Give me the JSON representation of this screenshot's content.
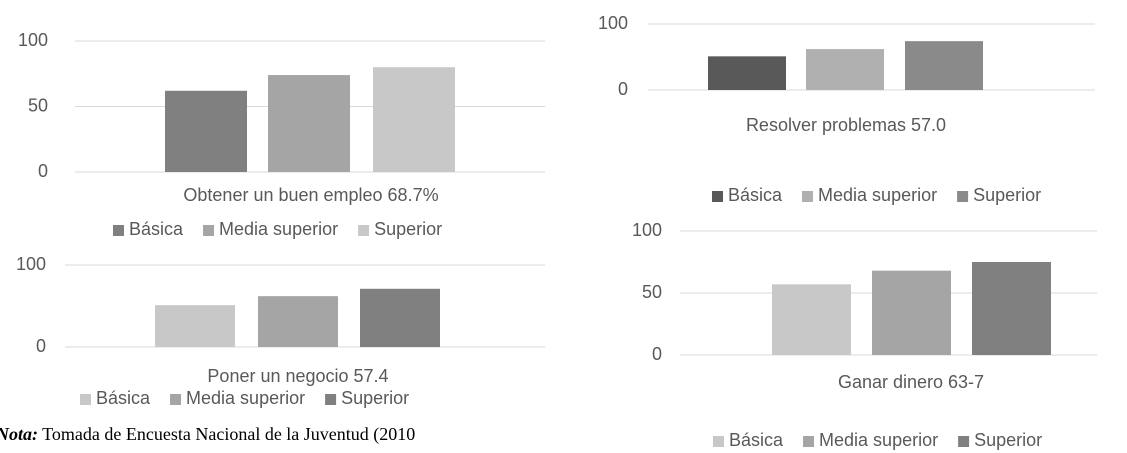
{
  "chart_data": [
    {
      "type": "bar",
      "title": "Obtener un buen empleo 68.7%",
      "series": [
        {
          "name": "Básica",
          "color": "#808080",
          "values": [
            62
          ]
        },
        {
          "name": "Media superior",
          "color": "#a5a5a5",
          "values": [
            74
          ]
        },
        {
          "name": "Superior",
          "color": "#c8c8c8",
          "values": [
            80
          ]
        }
      ],
      "ylim": [
        0,
        100
      ],
      "yticks": [
        0,
        50,
        100
      ],
      "grid": true
    },
    {
      "type": "bar",
      "title": "Poner un negocio 57.4",
      "series": [
        {
          "name": "Básica",
          "color": "#c8c8c8",
          "values": [
            51
          ]
        },
        {
          "name": "Media superior",
          "color": "#a5a5a5",
          "values": [
            62
          ]
        },
        {
          "name": "Superior",
          "color": "#808080",
          "values": [
            71
          ]
        }
      ],
      "ylim": [
        0,
        100
      ],
      "yticks": [
        0,
        100
      ],
      "grid": true
    },
    {
      "type": "bar",
      "title": "Resolver problemas 57.0",
      "series": [
        {
          "name": "Básica",
          "color": "#595959",
          "values": [
            51
          ]
        },
        {
          "name": "Media superior",
          "color": "#b0b0b0",
          "values": [
            62
          ]
        },
        {
          "name": "Superior",
          "color": "#8a8a8a",
          "values": [
            74
          ]
        }
      ],
      "ylim": [
        0,
        100
      ],
      "yticks": [
        0,
        100
      ],
      "grid": true
    },
    {
      "type": "bar",
      "title": "Ganar dinero 63-7",
      "series": [
        {
          "name": "Básica",
          "color": "#c8c8c8",
          "values": [
            57
          ]
        },
        {
          "name": "Media superior",
          "color": "#a5a5a5",
          "values": [
            68
          ]
        },
        {
          "name": "Superior",
          "color": "#808080",
          "values": [
            75
          ]
        }
      ],
      "ylim": [
        0,
        100
      ],
      "yticks": [
        0,
        50,
        100
      ],
      "grid": true
    }
  ],
  "note": {
    "label": "Nota:",
    "text": " Tomada de Encuesta Nacional de la Juventud (2010"
  }
}
